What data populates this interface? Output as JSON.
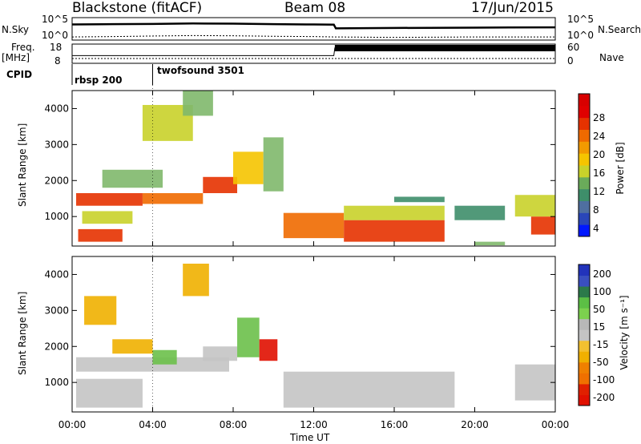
{
  "header": {
    "title": "Blackstone (fitACF)",
    "beam": "Beam 08",
    "date": "17/Jun/2015"
  },
  "left_labels": {
    "nsky": "N.Sky",
    "freq": "Freq.",
    "freq_unit": "[MHz]",
    "cpid": "CPID"
  },
  "right_labels": {
    "nsearch": "N.Search",
    "nave": "Nave"
  },
  "noise_axis": {
    "left_ticks": [
      "10^5",
      "10^0"
    ],
    "right_ticks": [
      "10^5",
      "10^0"
    ]
  },
  "freq_axis": {
    "left_ticks": [
      "18",
      "8"
    ],
    "right_ticks": [
      "60",
      "0"
    ]
  },
  "cpid_segments": [
    {
      "label": "rbsp 200",
      "start_hour": 0
    },
    {
      "label": "twofsound 3501",
      "start_hour": 4
    }
  ],
  "x_axis": {
    "label": "Time UT",
    "ticks": [
      "00:00",
      "04:00",
      "08:00",
      "12:00",
      "16:00",
      "20:00",
      "00:00"
    ]
  },
  "power_colorbar": {
    "label": "Power [dB]",
    "ticks": [
      "28",
      "24",
      "20",
      "16",
      "12",
      "8",
      "4"
    ]
  },
  "velocity_colorbar": {
    "label": "Velocity [m s⁻¹]",
    "ticks": [
      "200",
      "100",
      "50",
      "15",
      "-15",
      "-50",
      "-100",
      "-200"
    ]
  },
  "chart_data": [
    {
      "type": "line",
      "panel": "noise",
      "x_range_hours": [
        0,
        24
      ],
      "ylabel_left": "N.Sky",
      "ylabel_right": "N.Search",
      "y_scale": "log",
      "ylim": [
        1,
        100000
      ],
      "series": [
        {
          "name": "N.Sky",
          "x": [
            0,
            2,
            4,
            6,
            8,
            10,
            12,
            13,
            13.1,
            16,
            20,
            24
          ],
          "values": [
            3000,
            3500,
            4000,
            5000,
            4500,
            3500,
            3000,
            2800,
            400,
            500,
            600,
            700
          ]
        },
        {
          "name": "N.Search",
          "x": [
            0,
            2,
            4,
            6,
            8,
            10,
            12,
            13,
            16,
            20,
            24
          ],
          "values": [
            5,
            6,
            8,
            10,
            9,
            7,
            6,
            5,
            4,
            5,
            5
          ]
        }
      ]
    },
    {
      "type": "line",
      "panel": "frequency_nave",
      "x_range_hours": [
        0,
        24
      ],
      "ylabel_left": "Freq. [MHz]",
      "ylabel_right": "Nave",
      "ylim_left": [
        8,
        18
      ],
      "ylim_right": [
        0,
        60
      ],
      "series": [
        {
          "name": "Freq.",
          "x": [
            0,
            13,
            13.05,
            24
          ],
          "values": [
            12,
            12,
            16,
            16
          ]
        },
        {
          "name": "Nave",
          "x": [
            0,
            13,
            13.05,
            24
          ],
          "values": [
            4,
            4,
            6,
            6
          ]
        }
      ]
    },
    {
      "type": "heatmap",
      "panel": "power",
      "x_range_hours": [
        0,
        24
      ],
      "ylabel": "Slant Range [km]",
      "xlabel": "Time UT",
      "ylim": [
        180,
        4500
      ],
      "y_ticks": [
        1000,
        2000,
        3000,
        4000
      ],
      "colorbar": {
        "label": "Power [dB]",
        "range": [
          0,
          30
        ]
      },
      "regions": [
        {
          "t0": 0.2,
          "t1": 3.5,
          "r0": 1300,
          "r1": 1650,
          "value": 26
        },
        {
          "t0": 3.5,
          "t1": 6.5,
          "r0": 1350,
          "r1": 1650,
          "value": 24
        },
        {
          "t0": 6.5,
          "t1": 8.2,
          "r0": 1650,
          "r1": 2100,
          "value": 26
        },
        {
          "t0": 0.3,
          "t1": 2.5,
          "r0": 300,
          "r1": 650,
          "value": 27
        },
        {
          "t0": 0.5,
          "t1": 3.0,
          "r0": 800,
          "r1": 1150,
          "value": 14
        },
        {
          "t0": 1.5,
          "t1": 4.5,
          "r0": 1800,
          "r1": 2300,
          "value": 12
        },
        {
          "t0": 3.5,
          "t1": 6.0,
          "r0": 3100,
          "r1": 4100,
          "value": 14
        },
        {
          "t0": 5.5,
          "t1": 7.0,
          "r0": 3800,
          "r1": 4500,
          "value": 12
        },
        {
          "t0": 8.0,
          "t1": 9.5,
          "r0": 1900,
          "r1": 2800,
          "value": 18
        },
        {
          "t0": 9.5,
          "t1": 10.5,
          "r0": 1700,
          "r1": 3200,
          "value": 12
        },
        {
          "t0": 10.5,
          "t1": 13.5,
          "r0": 400,
          "r1": 1100,
          "value": 22
        },
        {
          "t0": 13.5,
          "t1": 18.5,
          "r0": 300,
          "r1": 900,
          "value": 26
        },
        {
          "t0": 13.5,
          "t1": 18.5,
          "r0": 900,
          "r1": 1300,
          "value": 14
        },
        {
          "t0": 16.0,
          "t1": 18.5,
          "r0": 1400,
          "r1": 1550,
          "value": 10
        },
        {
          "t0": 19.0,
          "t1": 21.5,
          "r0": 900,
          "r1": 1300,
          "value": 10
        },
        {
          "t0": 22.8,
          "t1": 24.0,
          "r0": 500,
          "r1": 1000,
          "value": 26
        },
        {
          "t0": 22.0,
          "t1": 24.0,
          "r0": 1000,
          "r1": 1600,
          "value": 14
        },
        {
          "t0": 20.0,
          "t1": 21.5,
          "r0": 200,
          "r1": 300,
          "value": 12
        }
      ]
    },
    {
      "type": "heatmap",
      "panel": "velocity",
      "x_range_hours": [
        0,
        24
      ],
      "ylabel": "Slant Range [km]",
      "xlabel": "Time UT",
      "ylim": [
        180,
        4500
      ],
      "y_ticks": [
        1000,
        2000,
        3000,
        4000
      ],
      "colorbar": {
        "label": "Velocity [m s⁻¹]",
        "range": [
          -200,
          200
        ]
      },
      "regions": [
        {
          "t0": 0.2,
          "t1": 7.8,
          "r0": 1300,
          "r1": 1700,
          "value": 0
        },
        {
          "t0": 6.5,
          "t1": 8.2,
          "r0": 1600,
          "r1": 2000,
          "value": 0
        },
        {
          "t0": 0.2,
          "t1": 3.5,
          "r0": 300,
          "r1": 1100,
          "value": 0
        },
        {
          "t0": 10.5,
          "t1": 19.0,
          "r0": 300,
          "r1": 1300,
          "value": 0
        },
        {
          "t0": 22.0,
          "t1": 24.0,
          "r0": 500,
          "r1": 1500,
          "value": 0
        },
        {
          "t0": 2.0,
          "t1": 4.0,
          "r0": 1800,
          "r1": 2200,
          "value": -30
        },
        {
          "t0": 5.5,
          "t1": 6.8,
          "r0": 3400,
          "r1": 4300,
          "value": -30
        },
        {
          "t0": 8.2,
          "t1": 9.3,
          "r0": 1700,
          "r1": 2800,
          "value": 30
        },
        {
          "t0": 9.3,
          "t1": 10.2,
          "r0": 1600,
          "r1": 2200,
          "value": -120
        },
        {
          "t0": 4.0,
          "t1": 5.2,
          "r0": 1500,
          "r1": 1900,
          "value": 30
        },
        {
          "t0": 0.6,
          "t1": 2.2,
          "r0": 2600,
          "r1": 3400,
          "value": -30
        }
      ]
    }
  ]
}
